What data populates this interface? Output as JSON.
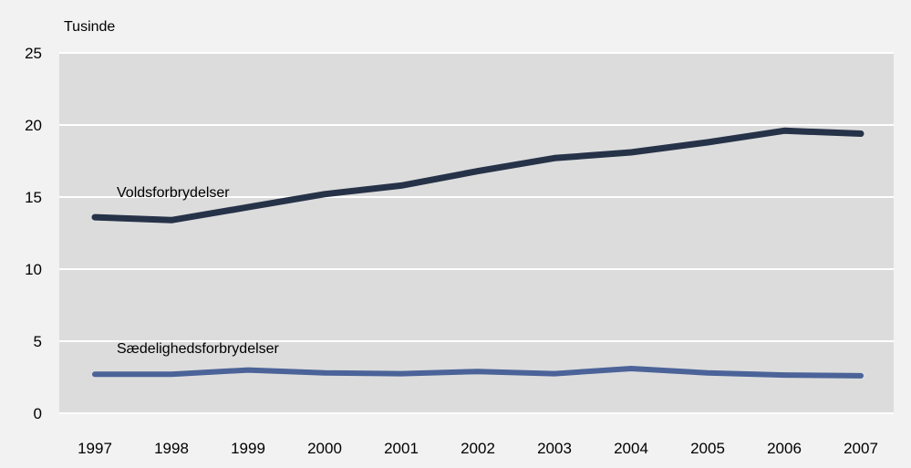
{
  "chart_data": {
    "type": "line",
    "unit_label": "Tusinde",
    "x": [
      "1997",
      "1998",
      "1999",
      "2000",
      "2001",
      "2002",
      "2003",
      "2004",
      "2005",
      "2006",
      "2007"
    ],
    "ylim": [
      0,
      25
    ],
    "yticks": [
      0,
      5,
      10,
      15,
      20,
      25
    ],
    "grid": true,
    "legend": "inline labels",
    "series": [
      {
        "name": "Voldsforbrydelser",
        "color": "#263248",
        "values": [
          13.6,
          13.4,
          14.3,
          15.2,
          15.8,
          16.8,
          17.7,
          18.1,
          18.8,
          19.6,
          19.4
        ]
      },
      {
        "name": "Sædelighedsforbrydelser",
        "color": "#4b6398",
        "values": [
          2.7,
          2.7,
          3.0,
          2.8,
          2.75,
          2.9,
          2.75,
          3.1,
          2.8,
          2.65,
          2.6
        ]
      }
    ]
  }
}
